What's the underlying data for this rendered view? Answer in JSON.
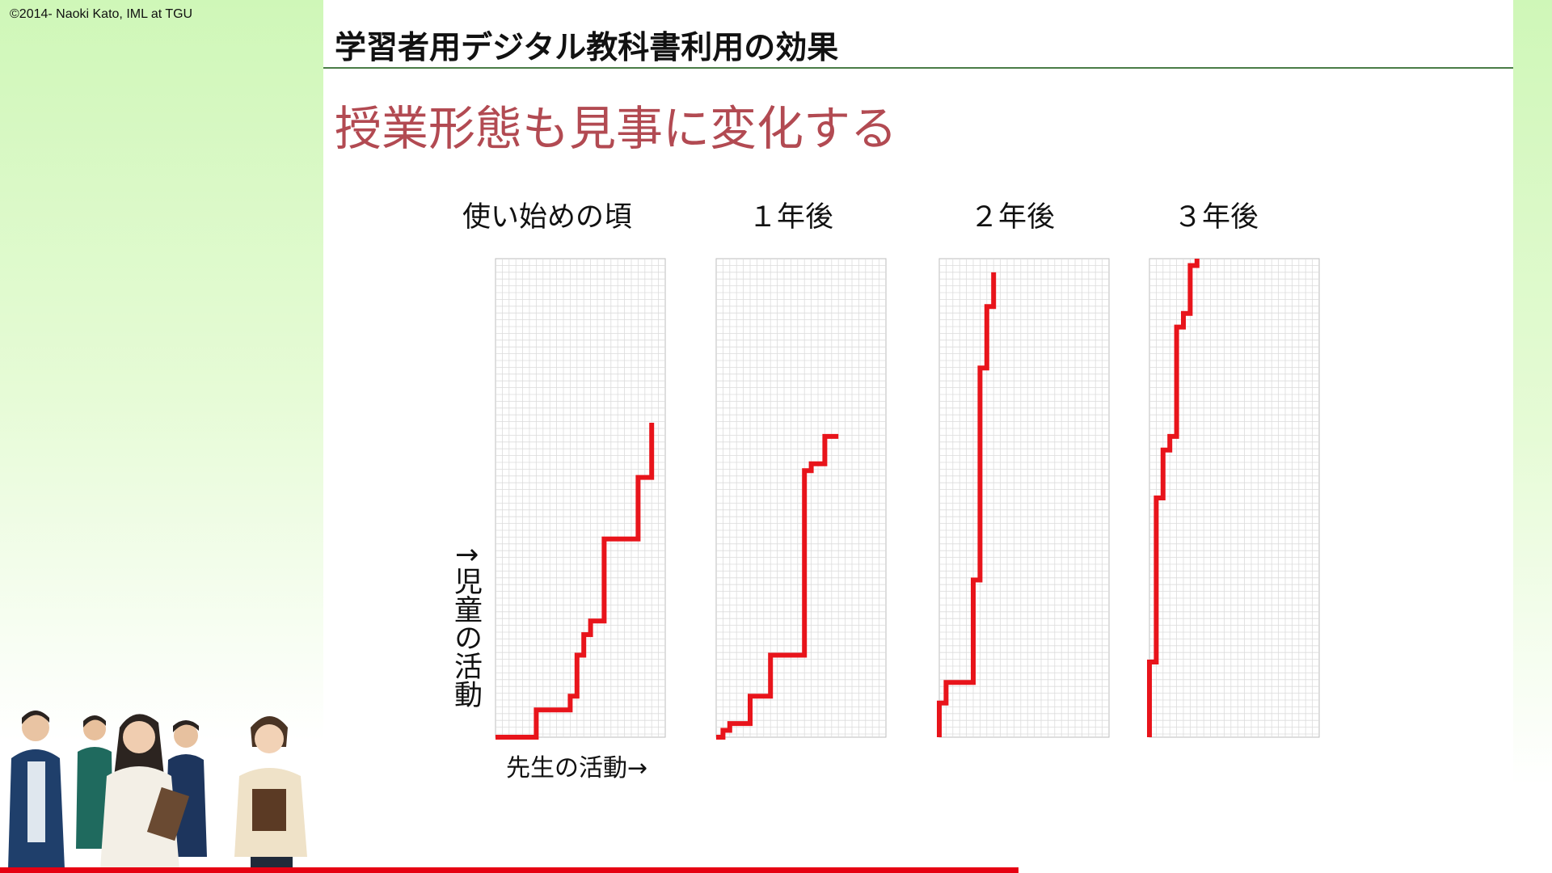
{
  "copyright": "©2014- Naoki Kato, IML at TGU",
  "header_title": "学習者用デジタル教科書利用の効果",
  "slide_title": "授業形態も見事に変化する",
  "colors": {
    "line": "#e8141b",
    "title": "#b24a52",
    "rule": "#4a7c46",
    "bar": "#e60012"
  },
  "illustration": "students-group-illustration",
  "chart_data": {
    "type": "line",
    "ylabel": "↑児童の活動",
    "xlabel": "先生の活動→",
    "grid": true,
    "xlim": [
      0,
      25
    ],
    "ylim": [
      0,
      70
    ],
    "panels": [
      {
        "title": "使い始めの頃",
        "points": [
          [
            0,
            0
          ],
          [
            6,
            0
          ],
          [
            6,
            4
          ],
          [
            11,
            4
          ],
          [
            11,
            6
          ],
          [
            12,
            6
          ],
          [
            12,
            12
          ],
          [
            13,
            12
          ],
          [
            13,
            15
          ],
          [
            14,
            15
          ],
          [
            14,
            17
          ],
          [
            16,
            17
          ],
          [
            16,
            29
          ],
          [
            21,
            29
          ],
          [
            21,
            38
          ],
          [
            23,
            38
          ],
          [
            23,
            46
          ]
        ]
      },
      {
        "title": "１年後",
        "points": [
          [
            0,
            0
          ],
          [
            1,
            0
          ],
          [
            1,
            1
          ],
          [
            2,
            1
          ],
          [
            2,
            2
          ],
          [
            5,
            2
          ],
          [
            5,
            6
          ],
          [
            8,
            6
          ],
          [
            8,
            12
          ],
          [
            13,
            12
          ],
          [
            13,
            39
          ],
          [
            14,
            39
          ],
          [
            14,
            40
          ],
          [
            16,
            40
          ],
          [
            16,
            44
          ],
          [
            18,
            44
          ]
        ]
      },
      {
        "title": "２年後",
        "points": [
          [
            0,
            0
          ],
          [
            0,
            5
          ],
          [
            1,
            5
          ],
          [
            1,
            8
          ],
          [
            5,
            8
          ],
          [
            5,
            23
          ],
          [
            6,
            23
          ],
          [
            6,
            54
          ],
          [
            7,
            54
          ],
          [
            7,
            63
          ],
          [
            8,
            63
          ],
          [
            8,
            68
          ]
        ]
      },
      {
        "title": "３年後",
        "points": [
          [
            0,
            0
          ],
          [
            0,
            11
          ],
          [
            1,
            11
          ],
          [
            1,
            35
          ],
          [
            2,
            35
          ],
          [
            2,
            42
          ],
          [
            3,
            42
          ],
          [
            3,
            44
          ],
          [
            4,
            44
          ],
          [
            4,
            60
          ],
          [
            5,
            60
          ],
          [
            5,
            62
          ],
          [
            6,
            62
          ],
          [
            6,
            69
          ],
          [
            7,
            69
          ],
          [
            7,
            70
          ]
        ]
      }
    ]
  }
}
